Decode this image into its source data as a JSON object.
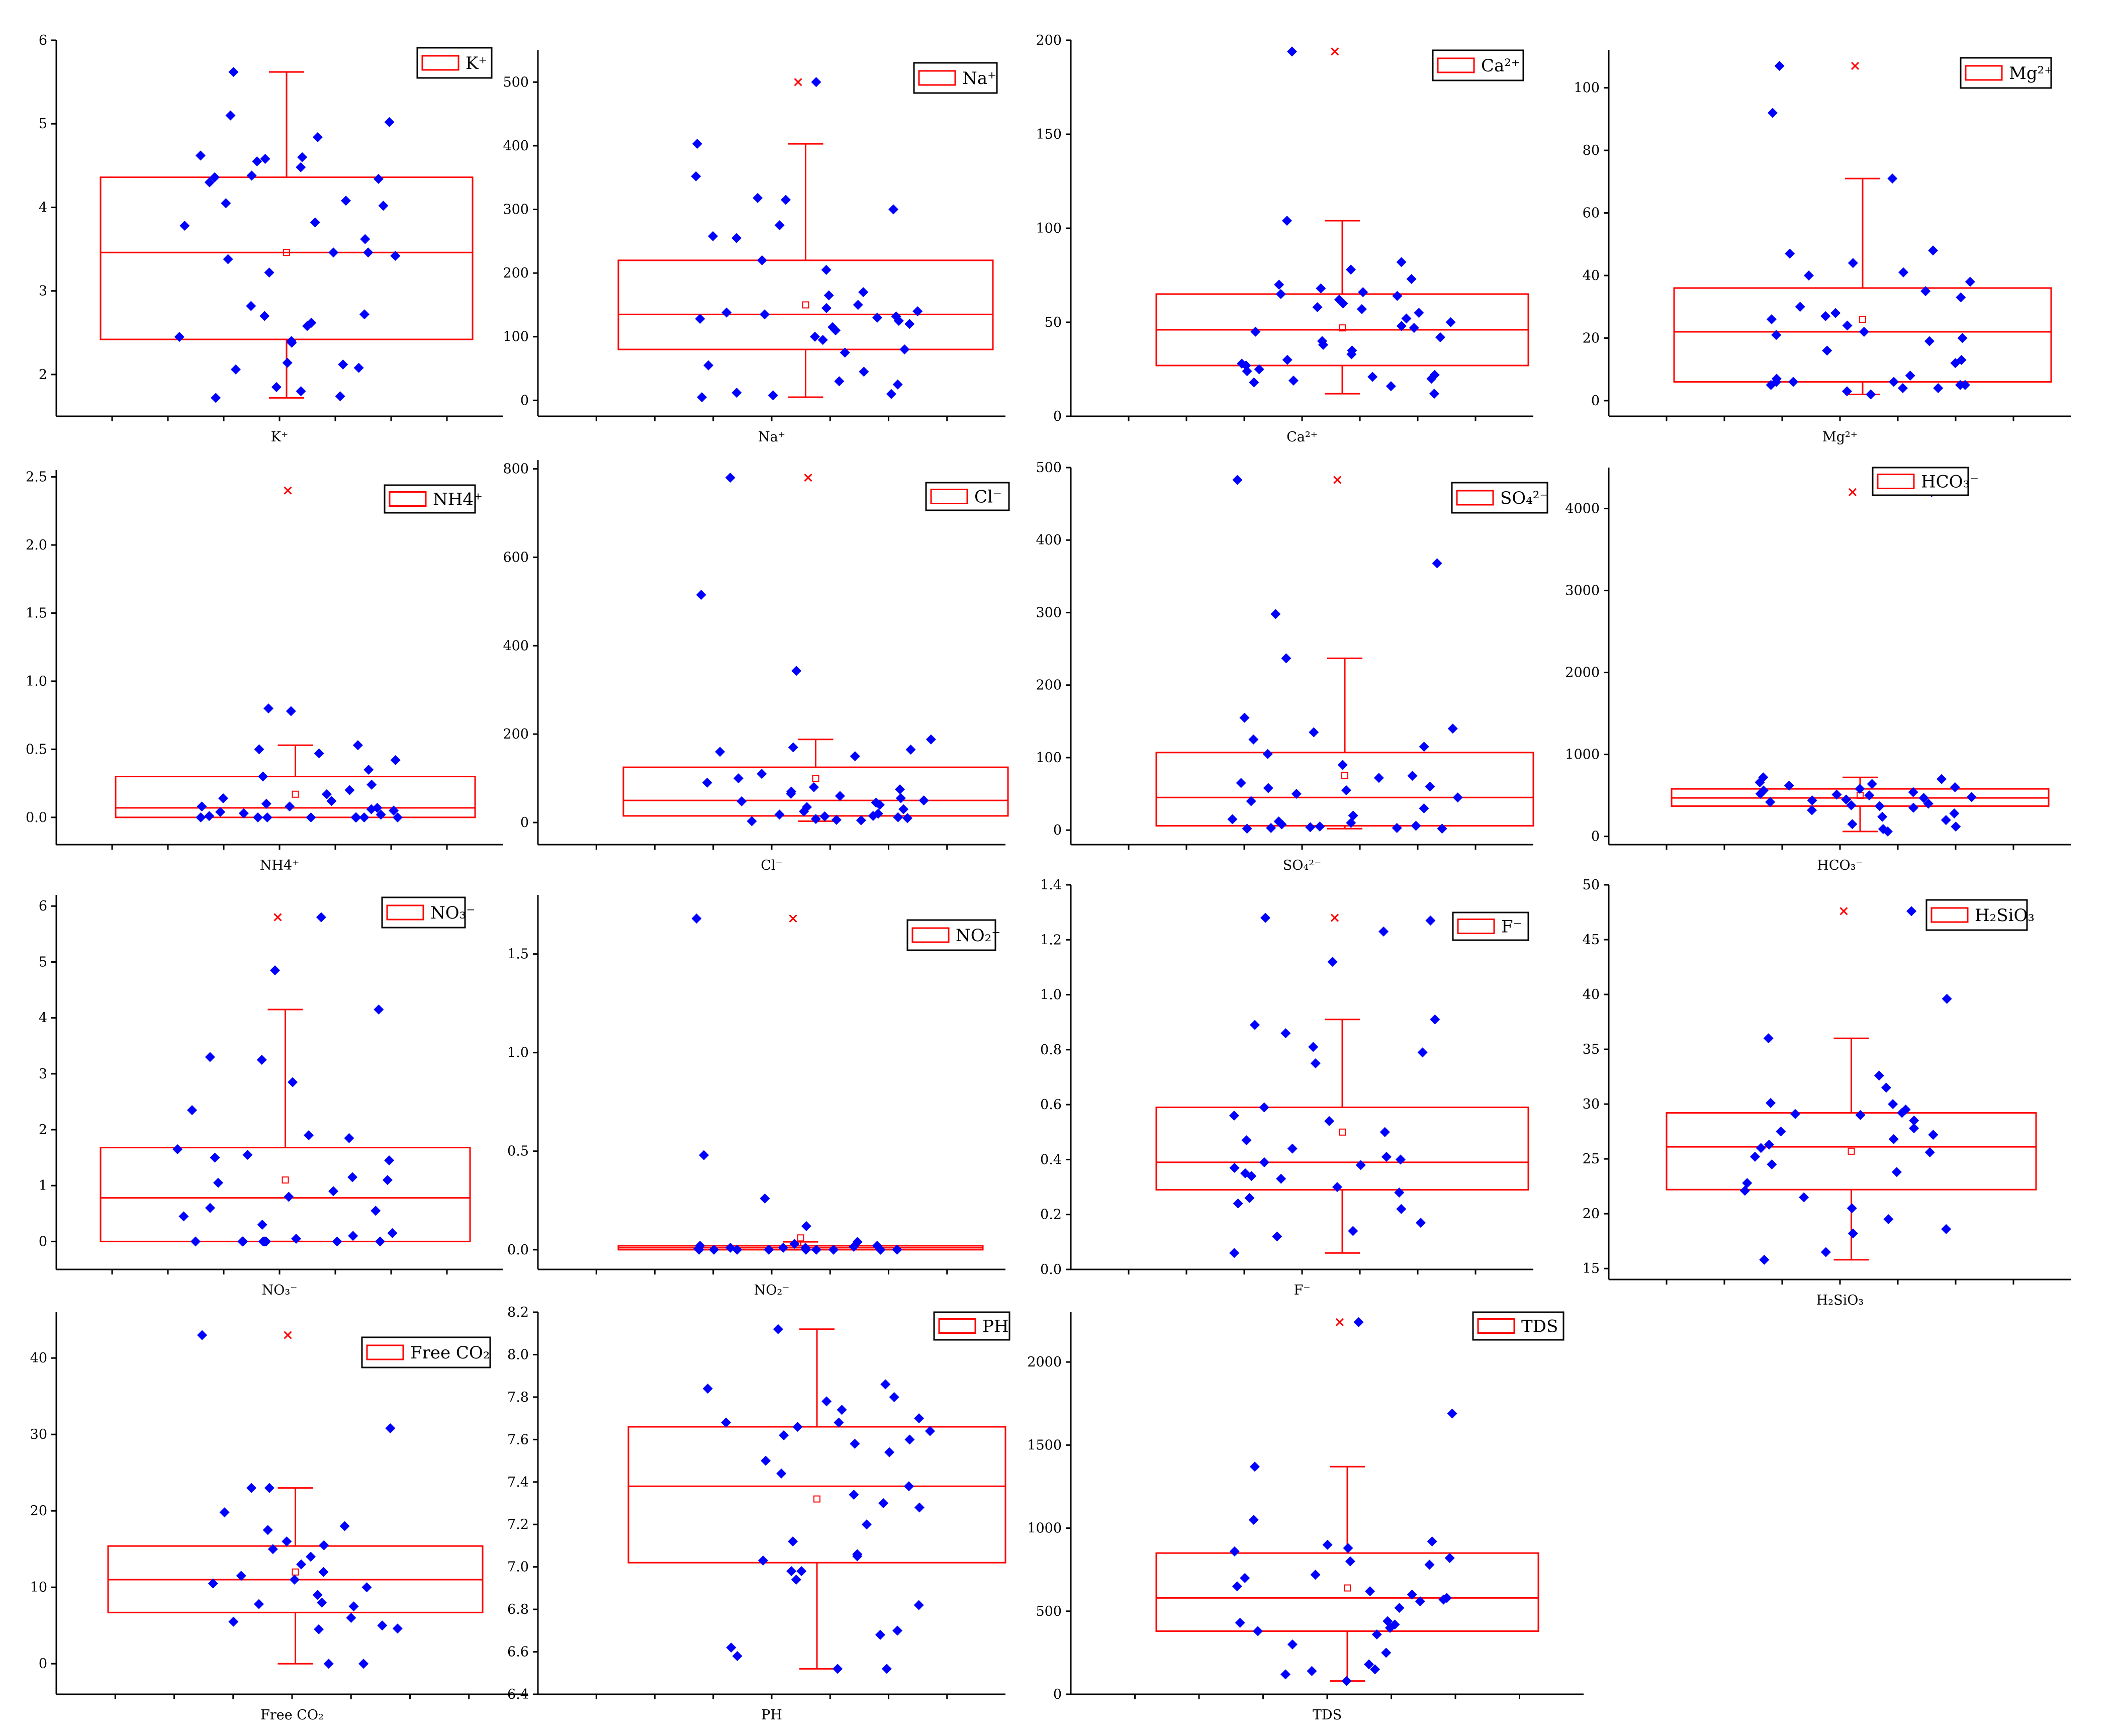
{
  "chart_data": [
    {
      "type": "box",
      "name": "K+",
      "legend": "K⁺",
      "xlabel": "K⁺",
      "ylim": [
        1.5,
        6.0
      ],
      "yticks": [
        2,
        3,
        4,
        5,
        6
      ],
      "yticklabels": [
        "2",
        "3",
        "4",
        "5",
        "6"
      ],
      "box": {
        "q1": 2.42,
        "median": 3.46,
        "q3": 4.36,
        "whisker_low": 1.72,
        "whisker_high": 5.62
      },
      "mean": 3.46,
      "outliers": [],
      "points": [
        1.72,
        1.74,
        1.8,
        1.85,
        2.06,
        2.08,
        2.12,
        2.14,
        2.38,
        2.4,
        2.45,
        2.58,
        2.62,
        2.7,
        2.72,
        2.82,
        3.22,
        3.38,
        3.42,
        3.46,
        3.46,
        3.62,
        3.78,
        3.82,
        4.02,
        4.05,
        4.08,
        4.3,
        4.34,
        4.36,
        4.38,
        4.48,
        4.55,
        4.58,
        4.6,
        4.62,
        4.84,
        5.02,
        5.1,
        5.62
      ]
    },
    {
      "type": "box",
      "name": "Na+",
      "legend": "Na⁺",
      "xlabel": "Na⁺",
      "ylim": [
        -25,
        550
      ],
      "yticks": [
        0,
        100,
        200,
        300,
        400,
        500
      ],
      "yticklabels": [
        "0",
        "100",
        "200",
        "300",
        "400",
        "500"
      ],
      "box": {
        "q1": 80,
        "median": 135,
        "q3": 220,
        "whisker_low": 5,
        "whisker_high": 403
      },
      "mean": 150,
      "outliers": [
        500
      ],
      "points": [
        5,
        8,
        10,
        12,
        25,
        30,
        45,
        55,
        75,
        80,
        95,
        100,
        110,
        115,
        120,
        125,
        128,
        130,
        132,
        135,
        138,
        140,
        145,
        150,
        165,
        170,
        205,
        220,
        255,
        258,
        275,
        300,
        315,
        318,
        352,
        403,
        500
      ]
    },
    {
      "type": "box",
      "name": "Ca2+",
      "legend": "Ca²⁺",
      "xlabel": "Ca²⁺",
      "ylim": [
        0,
        200
      ],
      "yticks": [
        0,
        50,
        100,
        150,
        200
      ],
      "yticklabels": [
        "0",
        "50",
        "100",
        "150",
        "200"
      ],
      "box": {
        "q1": 27,
        "median": 46,
        "q3": 65,
        "whisker_low": 12,
        "whisker_high": 104
      },
      "mean": 47,
      "outliers": [
        194
      ],
      "points": [
        12,
        16,
        18,
        19,
        20,
        21,
        22,
        24,
        25,
        27,
        28,
        30,
        33,
        35,
        38,
        40,
        42,
        45,
        47,
        48,
        50,
        52,
        55,
        57,
        58,
        60,
        62,
        64,
        65,
        66,
        68,
        70,
        73,
        78,
        82,
        104,
        194
      ]
    },
    {
      "type": "box",
      "name": "Mg2+",
      "legend": "Mg²⁺",
      "xlabel": "Mg²⁺",
      "ylim": [
        -5,
        112
      ],
      "yticks": [
        0,
        20,
        40,
        60,
        80,
        100
      ],
      "yticklabels": [
        "0",
        "20",
        "40",
        "60",
        "80",
        "100"
      ],
      "box": {
        "q1": 6,
        "median": 22,
        "q3": 36,
        "whisker_low": 2,
        "whisker_high": 71
      },
      "mean": 26,
      "outliers": [
        107
      ],
      "points": [
        2,
        3,
        4,
        4,
        5,
        5,
        5,
        6,
        6,
        6,
        7,
        8,
        12,
        13,
        16,
        19,
        20,
        21,
        22,
        24,
        26,
        27,
        28,
        30,
        33,
        35,
        38,
        40,
        41,
        44,
        47,
        48,
        71,
        92,
        107
      ]
    },
    {
      "type": "box",
      "name": "NH4+",
      "legend": "NH4⁺",
      "xlabel": "NH4⁺",
      "ylim": [
        -0.2,
        2.55
      ],
      "yticks": [
        0.0,
        0.5,
        1.0,
        1.5,
        2.0,
        2.5
      ],
      "yticklabels": [
        "0.0",
        "0.5",
        "1.0",
        "1.5",
        "2.0",
        "2.5"
      ],
      "box": {
        "q1": 0.0,
        "median": 0.07,
        "q3": 0.3,
        "whisker_low": 0.0,
        "whisker_high": 0.53
      },
      "mean": 0.17,
      "outliers": [
        2.4
      ],
      "points": [
        0,
        0,
        0,
        0,
        0,
        0,
        0,
        0,
        0.01,
        0.02,
        0.03,
        0.04,
        0.05,
        0.06,
        0.07,
        0.08,
        0.08,
        0.1,
        0.12,
        0.14,
        0.17,
        0.2,
        0.24,
        0.3,
        0.35,
        0.42,
        0.47,
        0.5,
        0.53,
        0.78,
        0.8,
        2.4
      ]
    },
    {
      "type": "box",
      "name": "Cl-",
      "legend": "Cl⁻",
      "xlabel": "Cl⁻",
      "ylim": [
        -50,
        820
      ],
      "yticks": [
        0,
        200,
        400,
        600,
        800
      ],
      "yticklabels": [
        "0",
        "200",
        "400",
        "600",
        "800"
      ],
      "box": {
        "q1": 15,
        "median": 50,
        "q3": 125,
        "whisker_low": 3,
        "whisker_high": 188
      },
      "mean": 100,
      "outliers": [
        780
      ],
      "points": [
        3,
        5,
        6,
        8,
        10,
        12,
        14,
        15,
        18,
        20,
        25,
        30,
        35,
        40,
        45,
        48,
        50,
        55,
        60,
        65,
        70,
        75,
        80,
        90,
        100,
        110,
        150,
        160,
        165,
        170,
        188,
        343,
        515,
        780
      ]
    },
    {
      "type": "box",
      "name": "SO42-",
      "legend": "SO₄²⁻",
      "xlabel": "SO₄²⁻",
      "ylim": [
        -20,
        500
      ],
      "yticks": [
        0,
        100,
        200,
        300,
        400,
        500
      ],
      "yticklabels": [
        "0",
        "100",
        "200",
        "300",
        "400",
        "500"
      ],
      "box": {
        "q1": 6,
        "median": 45,
        "q3": 107,
        "whisker_low": 2,
        "whisker_high": 237
      },
      "mean": 75,
      "outliers": [
        483
      ],
      "points": [
        2,
        2,
        3,
        3,
        4,
        5,
        6,
        8,
        10,
        12,
        15,
        20,
        30,
        40,
        45,
        50,
        55,
        58,
        60,
        65,
        72,
        75,
        90,
        105,
        115,
        125,
        135,
        140,
        155,
        237,
        298,
        368,
        483
      ]
    },
    {
      "type": "box",
      "name": "HCO3-",
      "legend": "HCO₃⁻",
      "xlabel": "HCO₃⁻",
      "ylim": [
        -100,
        4500
      ],
      "yticks": [
        0,
        1000,
        2000,
        3000,
        4000
      ],
      "yticklabels": [
        "0",
        "1000",
        "2000",
        "3000",
        "4000"
      ],
      "box": {
        "q1": 370,
        "median": 470,
        "q3": 580,
        "whisker_low": 60,
        "whisker_high": 720
      },
      "mean": 500,
      "outliers": [
        4200
      ],
      "points": [
        60,
        90,
        120,
        150,
        200,
        240,
        280,
        320,
        350,
        370,
        380,
        400,
        420,
        440,
        450,
        470,
        480,
        500,
        510,
        520,
        540,
        560,
        580,
        600,
        620,
        640,
        660,
        700,
        720,
        4200
      ]
    },
    {
      "type": "box",
      "name": "NO3-",
      "legend": "NO₃⁻",
      "xlabel": "NO₃⁻",
      "ylim": [
        -0.5,
        6.2
      ],
      "yticks": [
        0,
        1,
        2,
        3,
        4,
        5,
        6
      ],
      "yticklabels": [
        "0",
        "1",
        "2",
        "3",
        "4",
        "5",
        "6"
      ],
      "box": {
        "q1": 0.0,
        "median": 0.78,
        "q3": 1.68,
        "whisker_low": 0.0,
        "whisker_high": 4.15
      },
      "mean": 1.1,
      "outliers": [
        5.8
      ],
      "points": [
        0,
        0,
        0,
        0,
        0,
        0,
        0,
        0,
        0.05,
        0.1,
        0.15,
        0.3,
        0.45,
        0.55,
        0.6,
        0.8,
        0.9,
        1.05,
        1.1,
        1.15,
        1.45,
        1.5,
        1.55,
        1.65,
        1.85,
        1.9,
        2.35,
        2.85,
        3.25,
        3.3,
        4.15,
        4.85,
        5.8
      ]
    },
    {
      "type": "box",
      "name": "NO2-",
      "legend": "NO₂⁻",
      "xlabel": "NO₂⁻",
      "ylim": [
        -0.1,
        1.8
      ],
      "yticks": [
        0.0,
        0.5,
        1.0,
        1.5
      ],
      "yticklabels": [
        "0.0",
        "0.5",
        "1.0",
        "1.5"
      ],
      "box": {
        "q1": 0.0,
        "median": 0.01,
        "q3": 0.02,
        "whisker_low": 0.0,
        "whisker_high": 0.04
      },
      "mean": 0.06,
      "outliers": [
        1.68
      ],
      "points": [
        0,
        0,
        0,
        0,
        0,
        0,
        0,
        0,
        0,
        0.005,
        0.01,
        0.01,
        0.01,
        0.015,
        0.02,
        0.02,
        0.03,
        0.04,
        0.12,
        0.26,
        0.48,
        1.68
      ]
    },
    {
      "type": "box",
      "name": "F-",
      "legend": "F⁻",
      "xlabel": "F⁻",
      "ylim": [
        0,
        1.4
      ],
      "yticks": [
        0.0,
        0.2,
        0.4,
        0.6,
        0.8,
        1.0,
        1.2,
        1.4
      ],
      "yticklabels": [
        "0.0",
        "0.2",
        "0.4",
        "0.6",
        "0.8",
        "1.0",
        "1.2",
        "1.4"
      ],
      "box": {
        "q1": 0.29,
        "median": 0.39,
        "q3": 0.59,
        "whisker_low": 0.06,
        "whisker_high": 0.91
      },
      "mean": 0.5,
      "outliers": [
        1.28
      ],
      "points": [
        0.06,
        0.12,
        0.14,
        0.17,
        0.22,
        0.24,
        0.26,
        0.28,
        0.3,
        0.33,
        0.34,
        0.35,
        0.37,
        0.38,
        0.39,
        0.4,
        0.41,
        0.44,
        0.47,
        0.5,
        0.54,
        0.56,
        0.59,
        0.75,
        0.79,
        0.81,
        0.86,
        0.89,
        0.91,
        1.12,
        1.23,
        1.27,
        1.28
      ]
    },
    {
      "type": "box",
      "name": "H2SiO3",
      "legend": "H₂SiO₃",
      "xlabel": "H₂SiO₃",
      "ylim": [
        14,
        50
      ],
      "yticks": [
        15,
        20,
        25,
        30,
        35,
        40,
        45,
        50
      ],
      "yticklabels": [
        "15",
        "20",
        "25",
        "30",
        "35",
        "40",
        "45",
        "50"
      ],
      "box": {
        "q1": 22.2,
        "median": 26.1,
        "q3": 29.2,
        "whisker_low": 15.8,
        "whisker_high": 36.0
      },
      "mean": 25.7,
      "outliers": [
        47.6
      ],
      "points": [
        15.8,
        16.5,
        18.2,
        18.6,
        19.5,
        20.5,
        21.5,
        22.1,
        22.8,
        23.8,
        24.5,
        25.2,
        25.6,
        26.0,
        26.3,
        26.8,
        27.2,
        27.5,
        27.8,
        28.5,
        29.0,
        29.1,
        29.2,
        29.5,
        30.0,
        30.1,
        31.5,
        32.6,
        36.0,
        39.6,
        47.6
      ]
    },
    {
      "type": "box",
      "name": "Free CO2",
      "legend": "Free CO₂",
      "xlabel": "Free CO₂",
      "ylim": [
        -4,
        46
      ],
      "yticks": [
        0,
        10,
        20,
        30,
        40
      ],
      "yticklabels": [
        "0",
        "10",
        "20",
        "30",
        "40"
      ],
      "box": {
        "q1": 6.7,
        "median": 11,
        "q3": 15.4,
        "whisker_low": 0,
        "whisker_high": 23
      },
      "mean": 12,
      "outliers": [
        43
      ],
      "points": [
        0,
        0,
        4.5,
        4.6,
        5,
        5.5,
        6,
        7.5,
        7.8,
        8,
        9,
        10,
        10.5,
        11,
        11.5,
        12,
        13,
        14,
        15,
        15.5,
        16,
        17.5,
        18,
        19.8,
        23,
        23,
        30.8,
        43
      ]
    },
    {
      "type": "box",
      "name": "PH",
      "legend": "PH",
      "xlabel": "PH",
      "ylim": [
        6.4,
        8.2
      ],
      "yticks": [
        6.4,
        6.6,
        6.8,
        7.0,
        7.2,
        7.4,
        7.6,
        7.8,
        8.0,
        8.2
      ],
      "yticklabels": [
        "6.4",
        "6.6",
        "6.8",
        "7.0",
        "7.2",
        "7.4",
        "7.6",
        "7.8",
        "8.0",
        "8.2"
      ],
      "box": {
        "q1": 7.02,
        "median": 7.38,
        "q3": 7.66,
        "whisker_low": 6.52,
        "whisker_high": 8.12
      },
      "mean": 7.32,
      "outliers": [],
      "points": [
        6.52,
        6.52,
        6.58,
        6.62,
        6.68,
        6.7,
        6.82,
        6.94,
        6.98,
        6.98,
        7.03,
        7.05,
        7.06,
        7.12,
        7.2,
        7.28,
        7.3,
        7.34,
        7.38,
        7.44,
        7.5,
        7.54,
        7.58,
        7.6,
        7.62,
        7.64,
        7.66,
        7.68,
        7.68,
        7.7,
        7.74,
        7.78,
        7.8,
        7.84,
        7.86,
        8.12
      ]
    },
    {
      "type": "box",
      "name": "TDS",
      "legend": "TDS",
      "xlabel": "TDS",
      "ylim": [
        0,
        2300
      ],
      "yticks": [
        0,
        500,
        1000,
        1500,
        2000
      ],
      "yticklabels": [
        "0",
        "500",
        "1000",
        "1500",
        "2000"
      ],
      "box": {
        "q1": 380,
        "median": 580,
        "q3": 850,
        "whisker_low": 80,
        "whisker_high": 1370
      },
      "mean": 640,
      "outliers": [
        2240
      ],
      "points": [
        80,
        120,
        140,
        150,
        180,
        250,
        300,
        360,
        380,
        400,
        420,
        430,
        440,
        520,
        560,
        570,
        580,
        600,
        620,
        650,
        700,
        720,
        780,
        800,
        820,
        860,
        880,
        900,
        920,
        1050,
        1370,
        1690,
        2240
      ]
    }
  ]
}
